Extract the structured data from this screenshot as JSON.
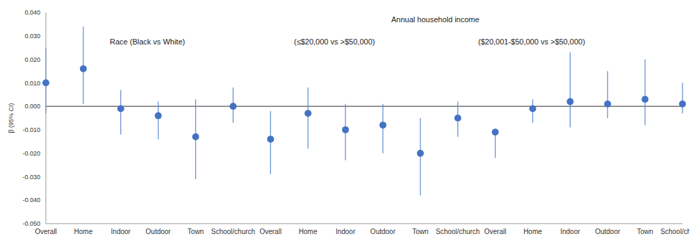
{
  "chart_data": {
    "type": "scatter",
    "y_label": "β (95% CI)",
    "annotations": [
      "Race (Black vs White)",
      "Annual household income",
      "(≤$20,000 vs >$50,000)",
      "($20,001-$50,000 vs >$50,000)"
    ],
    "categories": [
      "Overall",
      "Home",
      "Indoor",
      "Outdoor",
      "Town",
      "School/church",
      null,
      "Overall",
      "Home",
      "Indoor",
      "Outdoor",
      "Town",
      "School/church",
      null,
      "Overall",
      "Home",
      "Indoor",
      "Outdoor",
      "Town",
      "School/church"
    ],
    "values": [
      0.01,
      0.016,
      -0.001,
      -0.004,
      -0.013,
      0.0,
      null,
      -0.014,
      -0.003,
      -0.01,
      -0.008,
      -0.02,
      -0.005,
      null,
      -0.011,
      -0.001,
      0.002,
      0.001,
      0.003,
      0.001
    ],
    "ci_low": [
      -0.003,
      0.001,
      -0.012,
      -0.014,
      -0.031,
      -0.007,
      null,
      -0.029,
      -0.018,
      -0.023,
      -0.02,
      -0.038,
      -0.013,
      null,
      -0.022,
      -0.007,
      -0.009,
      -0.005,
      -0.008,
      -0.003
    ],
    "ci_high": [
      0.025,
      0.034,
      0.007,
      0.002,
      0.003,
      0.008,
      null,
      -0.002,
      0.008,
      0.001,
      0.001,
      -0.005,
      0.002,
      null,
      -0.01,
      0.003,
      0.023,
      0.015,
      0.02,
      0.01
    ],
    "color": "#4472c4",
    "marker": "circle",
    "baseline": 0,
    "grid": false,
    "ylim": [
      -0.05,
      0.04
    ],
    "yticks": [
      {
        "value": -0.05,
        "label": "-0.050"
      },
      {
        "value": -0.04,
        "label": "-0.040"
      },
      {
        "value": -0.03,
        "label": "-0.030"
      },
      {
        "value": -0.02,
        "label": "-0.020"
      },
      {
        "value": -0.01,
        "label": "-0.010"
      },
      {
        "value": 0,
        "label": "0.000"
      },
      {
        "value": 0.01,
        "label": "0.010"
      },
      {
        "value": 0.02,
        "label": "0.020"
      },
      {
        "value": 0.03,
        "label": "0.030"
      },
      {
        "value": 0.04,
        "label": "0.040"
      }
    ]
  }
}
